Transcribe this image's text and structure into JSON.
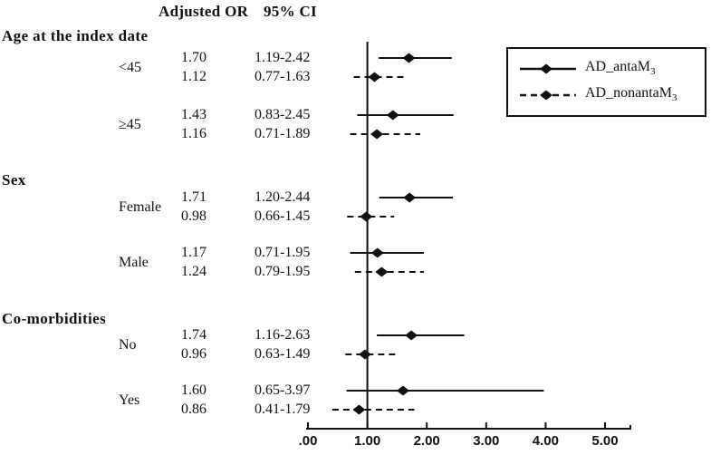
{
  "chart_data": {
    "type": "forest",
    "title": "",
    "columns": {
      "or_header": "Adjusted OR",
      "ci_header": "95% CI"
    },
    "x_axis": {
      "tick_labels": [
        ".00",
        "1.00",
        "2.00",
        "3.00",
        "4.00",
        "5.00"
      ],
      "tick_values": [
        0,
        1,
        2,
        3,
        4,
        5
      ],
      "range": [
        0,
        5.45
      ],
      "reference_line": 1.0,
      "grid": false
    },
    "legend": {
      "position": "top-right",
      "items": [
        {
          "name": "AD_antaM3",
          "text": "AD_antaM",
          "subscript": "3",
          "line_style": "solid"
        },
        {
          "name": "AD_nonantaM3",
          "text": "AD_nonantaM",
          "subscript": "3",
          "line_style": "dashed"
        }
      ]
    },
    "groups": [
      {
        "label": "Age at the index date",
        "subgroups": [
          {
            "label": "<45",
            "rows": [
              {
                "series": "AD_antaM3",
                "style": "solid",
                "or_text": "1.70",
                "ci_text": "1.19-2.42",
                "or": 1.7,
                "ci_low": 1.19,
                "ci_high": 2.42
              },
              {
                "series": "AD_nonantaM3",
                "style": "dashed",
                "or_text": "1.12",
                "ci_text": "0.77-1.63",
                "or": 1.12,
                "ci_low": 0.77,
                "ci_high": 1.63
              }
            ]
          },
          {
            "label": "≥45",
            "rows": [
              {
                "series": "AD_antaM3",
                "style": "solid",
                "or_text": "1.43",
                "ci_text": "0.83-2.45",
                "or": 1.43,
                "ci_low": 0.83,
                "ci_high": 2.45
              },
              {
                "series": "AD_nonantaM3",
                "style": "dashed",
                "or_text": "1.16",
                "ci_text": "0.71-1.89",
                "or": 1.16,
                "ci_low": 0.71,
                "ci_high": 1.89
              }
            ]
          }
        ]
      },
      {
        "label": "Sex",
        "subgroups": [
          {
            "label": "Female",
            "rows": [
              {
                "series": "AD_antaM3",
                "style": "solid",
                "or_text": "1.71",
                "ci_text": "1.20-2.44",
                "or": 1.71,
                "ci_low": 1.2,
                "ci_high": 2.44
              },
              {
                "series": "AD_nonantaM3",
                "style": "dashed",
                "or_text": "0.98",
                "ci_text": "0.66-1.45",
                "or": 0.98,
                "ci_low": 0.66,
                "ci_high": 1.45
              }
            ]
          },
          {
            "label": "Male",
            "rows": [
              {
                "series": "AD_antaM3",
                "style": "solid",
                "or_text": "1.17",
                "ci_text": "0.71-1.95",
                "or": 1.17,
                "ci_low": 0.71,
                "ci_high": 1.95
              },
              {
                "series": "AD_nonantaM3",
                "style": "dashed",
                "or_text": "1.24",
                "ci_text": "0.79-1.95",
                "or": 1.24,
                "ci_low": 0.79,
                "ci_high": 1.95
              }
            ]
          }
        ]
      },
      {
        "label": "Co-morbidities",
        "subgroups": [
          {
            "label": "No",
            "rows": [
              {
                "series": "AD_antaM3",
                "style": "solid",
                "or_text": "1.74",
                "ci_text": "1.16-2.63",
                "or": 1.74,
                "ci_low": 1.16,
                "ci_high": 2.63
              },
              {
                "series": "AD_nonantaM3",
                "style": "dashed",
                "or_text": "0.96",
                "ci_text": "0.63-1.49",
                "or": 0.96,
                "ci_low": 0.63,
                "ci_high": 1.49
              }
            ]
          },
          {
            "label": "Yes",
            "rows": [
              {
                "series": "AD_antaM3",
                "style": "solid",
                "or_text": "1.60",
                "ci_text": "0.65-3.97",
                "or": 1.6,
                "ci_low": 0.65,
                "ci_high": 3.97
              },
              {
                "series": "AD_nonantaM3",
                "style": "dashed",
                "or_text": "0.86",
                "ci_text": "0.41-1.79",
                "or": 0.86,
                "ci_low": 0.41,
                "ci_high": 1.79
              }
            ]
          }
        ]
      }
    ],
    "colors": {
      "line": "#111111",
      "marker": "#111111",
      "text": "#111111",
      "background": "#ffffff"
    }
  }
}
